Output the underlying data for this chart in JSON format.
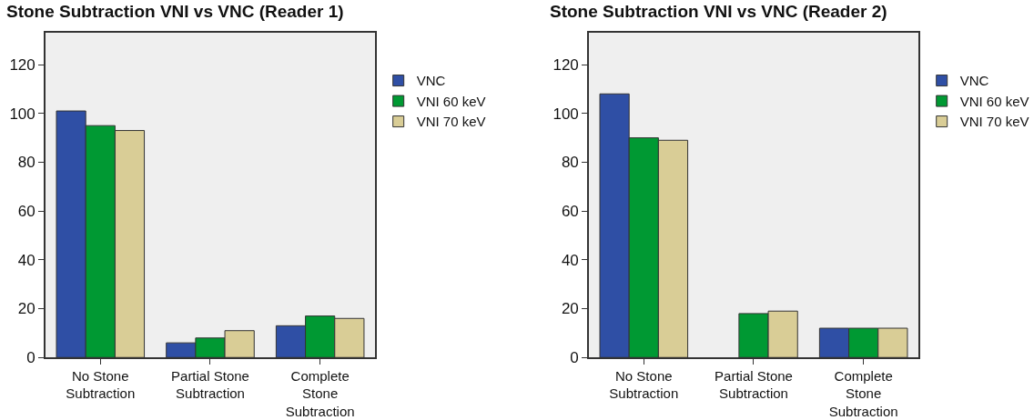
{
  "chart_data": [
    {
      "type": "bar",
      "title": "Stone Subtraction VNI vs VNC (Reader 1)",
      "categories": [
        "No Stone\nSubtraction",
        "Partial Stone\nSubtraction",
        "Complete\nStone\nSubtraction"
      ],
      "series": [
        {
          "name": "VNC",
          "color": "#2f4fa5",
          "values": [
            101,
            6,
            13
          ]
        },
        {
          "name": "VNI 60 keV",
          "color": "#009933",
          "values": [
            95,
            8,
            17
          ]
        },
        {
          "name": "VNI 70 keV",
          "color": "#d9cd96",
          "values": [
            93,
            11,
            16
          ]
        }
      ],
      "ylim": [
        0,
        133
      ],
      "yticks": [
        0,
        20,
        40,
        60,
        80,
        100,
        120
      ],
      "grid": false,
      "legend": "top right"
    },
    {
      "type": "bar",
      "title": "Stone Subtraction VNI vs VNC (Reader 2)",
      "categories": [
        "No Stone\nSubtraction",
        "Partial Stone\nSubtraction",
        "Complete\nStone\nSubtraction"
      ],
      "series": [
        {
          "name": "VNC",
          "color": "#2f4fa5",
          "values": [
            108,
            null,
            12
          ]
        },
        {
          "name": "VNI 60 keV",
          "color": "#009933",
          "values": [
            90,
            18,
            12
          ]
        },
        {
          "name": "VNI 70 keV",
          "color": "#d9cd96",
          "values": [
            89,
            19,
            12
          ]
        }
      ],
      "ylim": [
        0,
        133
      ],
      "yticks": [
        0,
        20,
        40,
        60,
        80,
        100,
        120
      ],
      "grid": false,
      "legend": "top right"
    }
  ]
}
